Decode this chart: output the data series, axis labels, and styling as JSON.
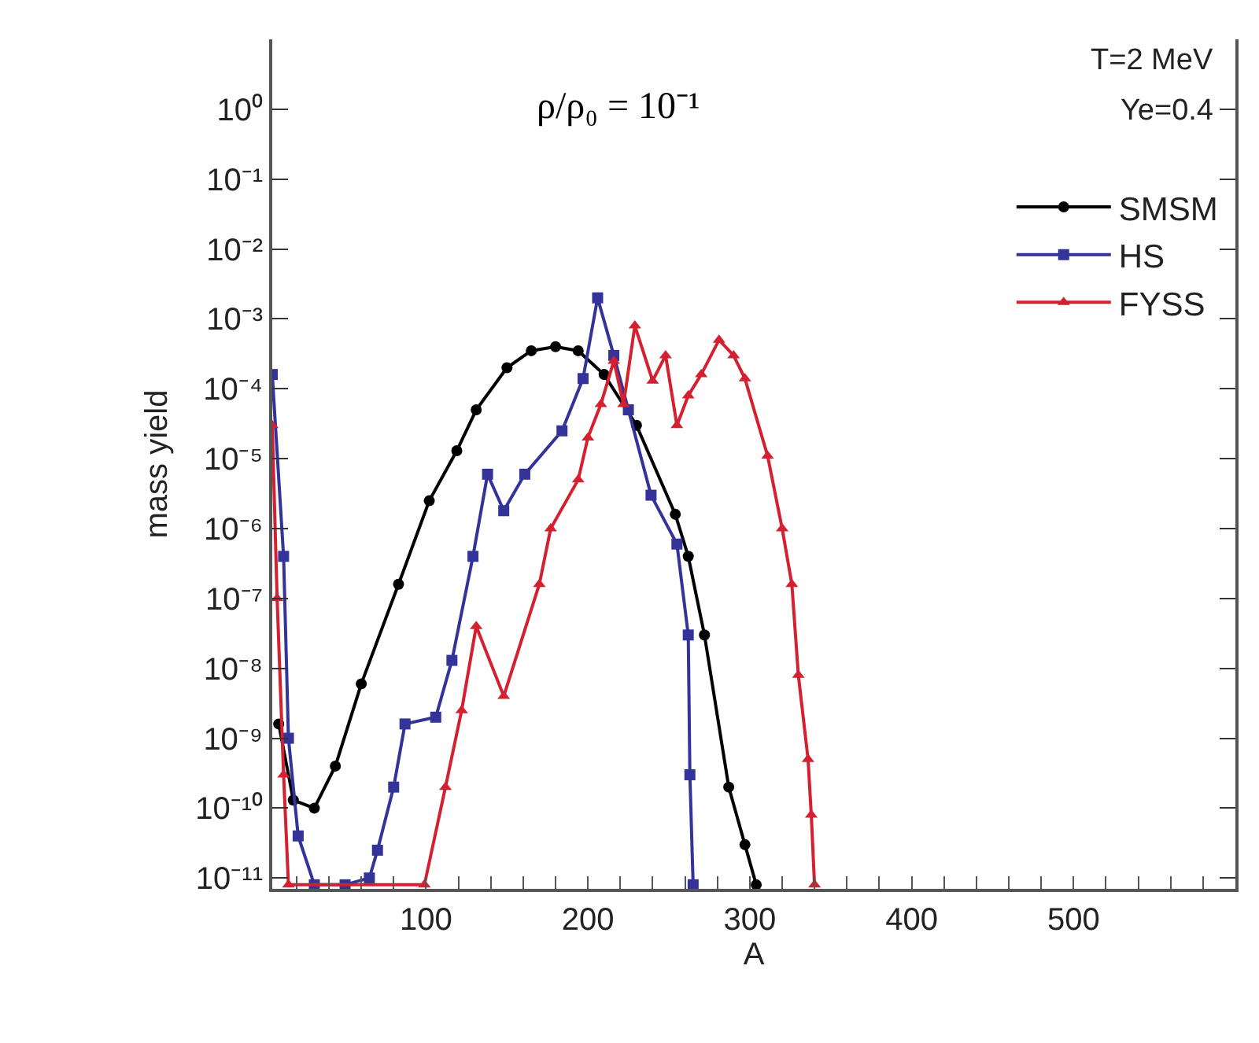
{
  "chart_data": {
    "type": "line",
    "xlabel": "A",
    "ylabel": "mass yield",
    "annotations": [
      "ρ/ρ₀ = 10⁻¹",
      "T=2 MeV",
      "Ye=0.4"
    ],
    "log": "y",
    "legend": "top right",
    "line_style": "solid",
    "xlim": [
      5,
      600
    ],
    "xticks": [
      {
        "value": 20,
        "label": null
      },
      {
        "value": 40,
        "label": null
      },
      {
        "value": 60,
        "label": null
      },
      {
        "value": 80,
        "label": null
      },
      100,
      {
        "value": 120,
        "label": null
      },
      {
        "value": 140,
        "label": null
      },
      {
        "value": 160,
        "label": null
      },
      {
        "value": 180,
        "label": null
      },
      200,
      {
        "value": 220,
        "label": null
      },
      {
        "value": 240,
        "label": null
      },
      {
        "value": 260,
        "label": null
      },
      {
        "value": 280,
        "label": null
      },
      300,
      {
        "value": 320,
        "label": null
      },
      {
        "value": 340,
        "label": null
      },
      {
        "value": 360,
        "label": null
      },
      {
        "value": 380,
        "label": null
      },
      400,
      {
        "value": 420,
        "label": null
      },
      {
        "value": 440,
        "label": null
      },
      {
        "value": 460,
        "label": null
      },
      {
        "value": 480,
        "label": null
      },
      500,
      {
        "value": 520,
        "label": null
      },
      {
        "value": 540,
        "label": null
      },
      {
        "value": 560,
        "label": null
      },
      {
        "value": 580,
        "label": null
      }
    ],
    "ylim": [
      7e-12,
      10
    ],
    "yticks": [
      {
        "value": 1,
        "label": "10⁰"
      },
      {
        "value": 0.1,
        "label": "10⁻¹"
      },
      {
        "value": 0.01,
        "label": "10⁻²"
      },
      {
        "value": 0.001,
        "label": "10⁻³"
      },
      {
        "value": 0.0001,
        "label": "10⁻⁴"
      },
      {
        "value": 1e-05,
        "label": "10⁻⁵"
      },
      {
        "value": 1e-06,
        "label": "10⁻⁶"
      },
      {
        "value": 1e-07,
        "label": "10⁻⁷"
      },
      {
        "value": 1e-08,
        "label": "10⁻⁸"
      },
      {
        "value": 1e-09,
        "label": "10⁻⁹"
      },
      {
        "value": 1e-10,
        "label": "10⁻¹⁰"
      },
      {
        "value": 1e-11,
        "label": "10⁻¹¹"
      }
    ],
    "series": [
      {
        "name": "SMSM",
        "color": "#000000",
        "marker": "circle",
        "x": [
          9,
          18,
          31,
          44,
          60,
          83,
          102,
          119,
          131,
          150,
          165,
          180,
          194,
          210,
          230,
          254,
          262,
          272,
          287,
          297,
          304
        ],
        "values": [
          1.6e-09,
          1.3e-10,
          1e-10,
          4e-10,
          6e-09,
          1.6e-07,
          2.5e-06,
          1.3e-05,
          5e-05,
          0.0002,
          0.00035,
          0.0004,
          0.00035,
          0.00016,
          3e-05,
          1.6e-06,
          4e-07,
          3e-08,
          2e-10,
          3e-11,
          8e-12
        ]
      },
      {
        "name": "HS",
        "color": "#333399",
        "marker": "square",
        "x": [
          5,
          12,
          15,
          21,
          31,
          50,
          65,
          70,
          80,
          87,
          106,
          116,
          129,
          138,
          148,
          161,
          184,
          197,
          206,
          216,
          225,
          239,
          255,
          262,
          263,
          265
        ],
        "values": [
          0.00016,
          4e-07,
          1e-09,
          4e-11,
          8e-12,
          8e-12,
          1e-11,
          2.5e-11,
          2e-10,
          1.6e-09,
          2e-09,
          1.3e-08,
          4e-07,
          6e-06,
          1.8e-06,
          6e-06,
          2.5e-05,
          0.00014,
          0.002,
          0.0003,
          5e-05,
          3e-06,
          6e-07,
          3e-08,
          3e-10,
          8e-12
        ]
      },
      {
        "name": "FYSS",
        "color": "#d42030",
        "marker": "triangle",
        "x": [
          5,
          8,
          12,
          15,
          99,
          112,
          122,
          131,
          148,
          170,
          177,
          194,
          200,
          208,
          216,
          222,
          229,
          240,
          248,
          255,
          262,
          270,
          281,
          290,
          297,
          311,
          320,
          326,
          330,
          336,
          338,
          340
        ],
        "values": [
          3e-05,
          1e-07,
          3e-10,
          8e-12,
          8e-12,
          2e-10,
          2.5e-09,
          4e-08,
          4e-09,
          1.6e-07,
          1e-06,
          5e-06,
          2e-05,
          6e-05,
          0.00025,
          6e-05,
          0.0008,
          0.00013,
          0.0003,
          3e-05,
          8e-05,
          0.00016,
          0.0005,
          0.0003,
          0.00014,
          1.1e-05,
          1e-06,
          1.6e-07,
          8e-09,
          5e-10,
          8e-11,
          8e-12
        ]
      }
    ]
  }
}
